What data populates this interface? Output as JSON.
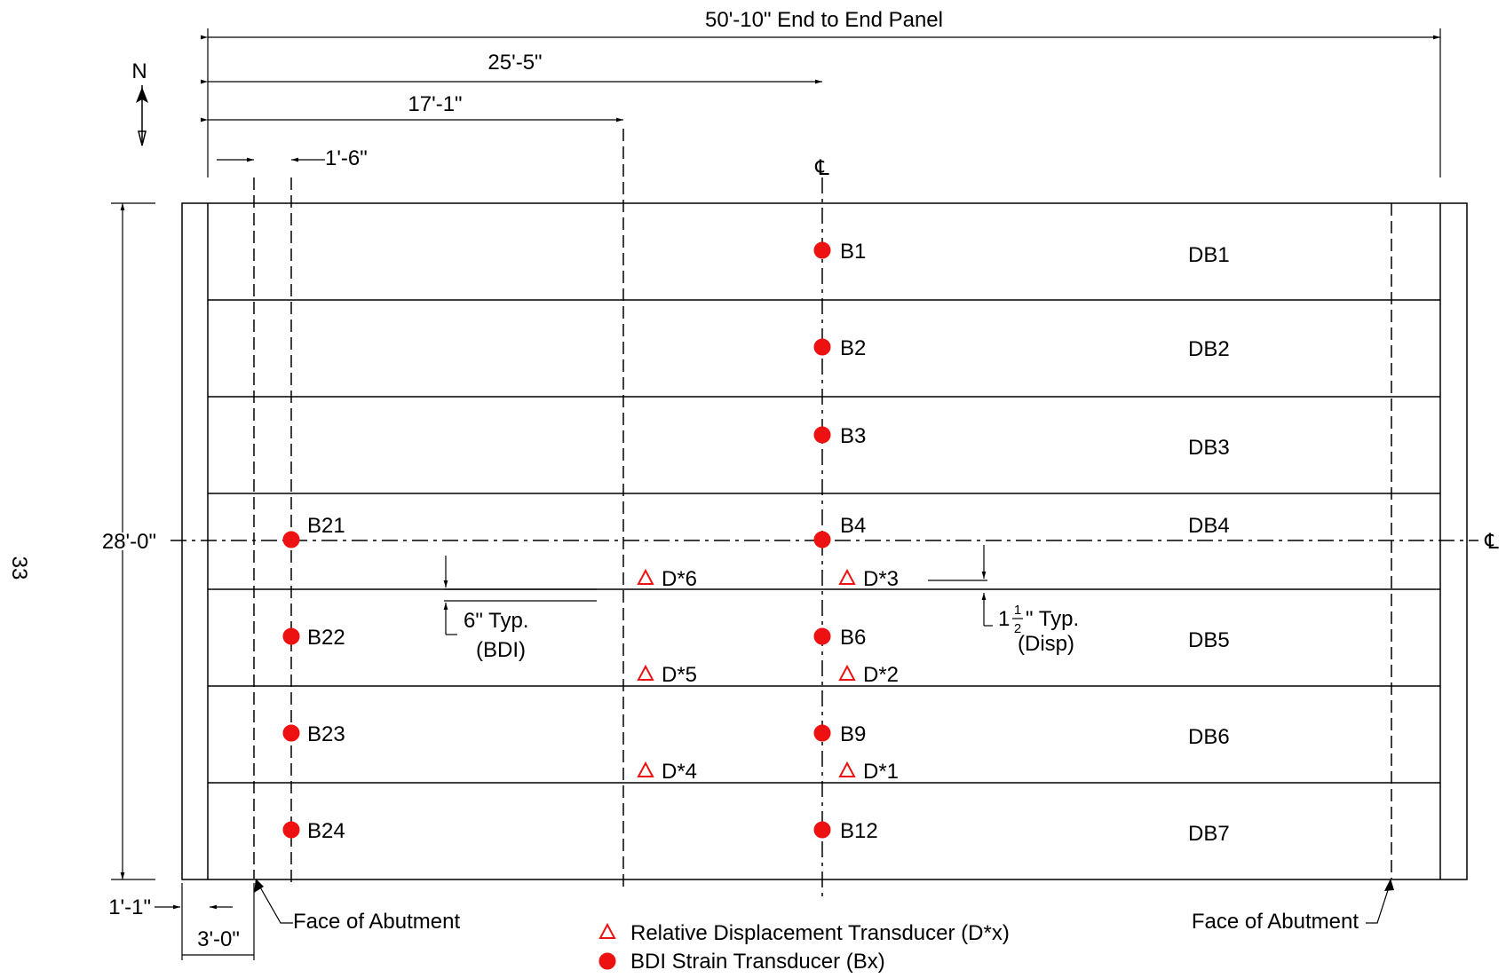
{
  "dimensions": {
    "overall": "50'-10\" End to End Panel",
    "to_centerline": "25'-5\"",
    "to_sensor_line": "17'-1\"",
    "end_offset": "1'-6\"",
    "width": "28'-0\"",
    "left_edge": "1'-1\"",
    "abutment_offset": "3'-0\"",
    "bdi_offset": "6\" Typ.",
    "bdi_offset_note": "(BDI)",
    "disp_offset_whole": "1",
    "disp_offset_num": "1",
    "disp_offset_den": "2",
    "disp_offset_tail": "\" Typ.",
    "disp_offset_note": "(Disp)"
  },
  "north_label": "N",
  "centerline_symbol": "℄",
  "page_number": "33",
  "abutments": {
    "left": "Face of Abutment",
    "right": "Face of Abutment"
  },
  "beams": [
    "DB1",
    "DB2",
    "DB3",
    "DB4",
    "DB5",
    "DB6",
    "DB7"
  ],
  "strain_gauges": [
    "B1",
    "B2",
    "B3",
    "B4",
    "B6",
    "B9",
    "B12",
    "B21",
    "B22",
    "B23",
    "B24"
  ],
  "displacement_transducers": [
    "D*1",
    "D*2",
    "D*3",
    "D*4",
    "D*5",
    "D*6"
  ],
  "legend": {
    "displacement": "Relative Displacement Transducer (D*x)",
    "strain": "BDI Strain Transducer (Bx)"
  },
  "colors": {
    "sensor": "#ee1111",
    "line": "#000000"
  }
}
